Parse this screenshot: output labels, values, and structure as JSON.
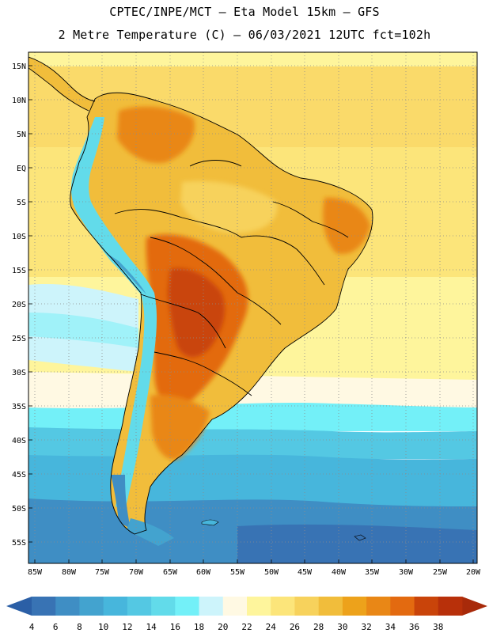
{
  "header": {
    "line1": "CPTEC/INPE/MCT –  Eta Model 15km – GFS",
    "line2": "2 Metre Temperature (C) – 06/03/2021 12UTC fct=102h"
  },
  "axes": {
    "lat_labels": [
      "15N",
      "10N",
      "5N",
      "EQ",
      "5S",
      "10S",
      "15S",
      "20S",
      "25S",
      "30S",
      "35S",
      "40S",
      "45S",
      "50S",
      "55S"
    ],
    "lon_labels": [
      "85W",
      "80W",
      "75W",
      "70W",
      "65W",
      "60W",
      "55W",
      "50W",
      "45W",
      "40W",
      "35W",
      "30W",
      "25W",
      "20W"
    ]
  },
  "colorbar": {
    "labels": [
      "4",
      "6",
      "8",
      "10",
      "12",
      "14",
      "16",
      "18",
      "20",
      "22",
      "24",
      "26",
      "28",
      "30",
      "32",
      "34",
      "36",
      "38"
    ],
    "colors": [
      "#3873b4",
      "#3f8ec4",
      "#43a3cf",
      "#47b6dc",
      "#54c8e3",
      "#62dbea",
      "#73f0f8",
      "#cdf4fb",
      "#fff9e3",
      "#fef59c",
      "#fce57a",
      "#f7d25c",
      "#f1bd3b",
      "#eda21b",
      "#e98716",
      "#e36a10",
      "#c9440a",
      "#b8300a"
    ],
    "low_arrow_color": "#2b5fa6",
    "high_arrow_color": "#a82a0a"
  }
}
